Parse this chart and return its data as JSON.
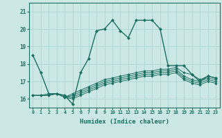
{
  "xlabel": "Humidex (Indice chaleur)",
  "background_color": "#cce8e4",
  "grid_color": "#b0d8d4",
  "line_color": "#1a6e62",
  "xlim_min": -0.5,
  "xlim_max": 23.5,
  "ylim_min": 15.5,
  "ylim_max": 21.5,
  "yticks": [
    16,
    17,
    18,
    19,
    20,
    21
  ],
  "xtick_labels": [
    "0",
    "1",
    "2",
    "3",
    "4",
    "5",
    "6",
    "7",
    "8",
    "9",
    "10",
    "11",
    "12",
    "13",
    "14",
    "15",
    "16",
    "17",
    "18",
    "19",
    "20",
    "21",
    "22",
    "23"
  ],
  "series": [
    [
      18.5,
      17.5,
      16.3,
      16.3,
      16.2,
      15.7,
      17.5,
      18.3,
      19.9,
      20.0,
      20.5,
      19.9,
      19.5,
      20.5,
      20.5,
      20.5,
      20.0,
      17.9,
      17.9,
      17.9,
      17.4,
      17.0,
      17.3,
      17.2
    ],
    [
      16.2,
      16.2,
      16.3,
      16.3,
      16.1,
      16.3,
      16.5,
      16.7,
      16.9,
      17.1,
      17.2,
      17.3,
      17.4,
      17.5,
      17.6,
      17.6,
      17.7,
      17.7,
      17.8,
      17.5,
      17.4,
      17.1,
      17.3,
      17.2
    ],
    [
      16.2,
      16.2,
      16.2,
      16.3,
      16.1,
      16.2,
      16.4,
      16.6,
      16.8,
      17.0,
      17.1,
      17.2,
      17.3,
      17.4,
      17.5,
      17.5,
      17.6,
      17.6,
      17.7,
      17.3,
      17.1,
      17.0,
      17.2,
      17.1
    ],
    [
      16.2,
      16.2,
      16.2,
      16.3,
      16.1,
      16.1,
      16.3,
      16.5,
      16.7,
      16.9,
      17.0,
      17.1,
      17.2,
      17.3,
      17.4,
      17.4,
      17.5,
      17.5,
      17.6,
      17.2,
      17.0,
      16.9,
      17.1,
      17.0
    ],
    [
      16.2,
      16.2,
      16.2,
      16.3,
      16.1,
      16.0,
      16.2,
      16.4,
      16.6,
      16.8,
      16.9,
      17.0,
      17.1,
      17.2,
      17.3,
      17.3,
      17.4,
      17.4,
      17.5,
      17.1,
      16.9,
      16.8,
      17.0,
      16.9
    ]
  ]
}
